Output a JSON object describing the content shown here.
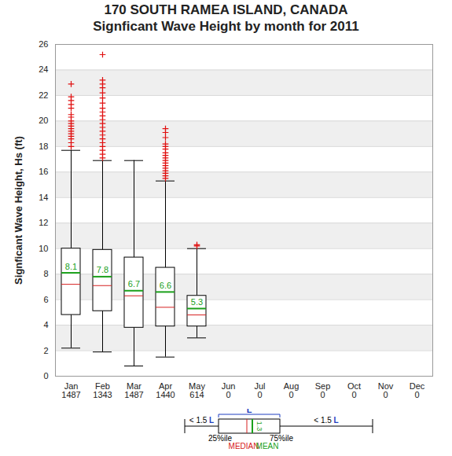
{
  "chart_data": {
    "type": "box",
    "title": "170   SOUTH RAMEA ISLAND, CANADA",
    "subtitle": "Signficant Wave Height by month for 2011",
    "ylabel": "Signficant Wave Height, Hs (ft)",
    "categories": [
      "Jan",
      "Feb",
      "Mar",
      "Apr",
      "May",
      "Jun",
      "Jul",
      "Aug",
      "Sep",
      "Oct",
      "Nov",
      "Dec"
    ],
    "counts": [
      1487,
      1343,
      1487,
      1440,
      614,
      0,
      0,
      0,
      0,
      0,
      0,
      0
    ],
    "boxes": [
      {
        "low": 2.2,
        "q1": 4.8,
        "median": 7.2,
        "mean": 8.1,
        "q3": 10.0,
        "high": 17.7,
        "outliers": [
          18.0,
          18.3,
          18.6,
          18.8,
          19.0,
          19.2,
          19.4,
          19.6,
          19.8,
          20.0,
          20.3,
          20.5,
          21.0,
          21.3,
          21.6,
          21.9,
          22.9
        ]
      },
      {
        "low": 1.9,
        "q1": 5.1,
        "median": 7.1,
        "mean": 7.8,
        "q3": 9.9,
        "high": 16.9,
        "outliers": [
          17.1,
          17.4,
          17.7,
          18.0,
          18.3,
          18.6,
          18.9,
          19.2,
          19.5,
          19.8,
          20.1,
          20.4,
          20.7,
          21.0,
          21.4,
          21.8,
          22.2,
          22.6,
          22.9,
          23.2,
          25.2
        ]
      },
      {
        "low": 0.8,
        "q1": 3.8,
        "median": 6.3,
        "mean": 6.7,
        "q3": 9.3,
        "high": 16.9,
        "outliers": []
      },
      {
        "low": 1.5,
        "q1": 3.9,
        "median": 5.4,
        "mean": 6.6,
        "q3": 8.5,
        "high": 15.3,
        "outliers": [
          15.5,
          15.7,
          15.9,
          16.1,
          16.3,
          16.5,
          16.7,
          16.9,
          17.1,
          17.3,
          17.5,
          17.8,
          18.0,
          18.2,
          18.7,
          19.1,
          19.4
        ]
      },
      {
        "low": 3.0,
        "q1": 3.9,
        "median": 4.8,
        "mean": 5.3,
        "q3": 6.3,
        "high": 10.0,
        "outliers": [
          10.2,
          10.3
        ]
      },
      null,
      null,
      null,
      null,
      null,
      null,
      null
    ],
    "ylim": [
      0,
      26
    ],
    "yticks": [
      0,
      2,
      4,
      6,
      8,
      10,
      12,
      14,
      16,
      18,
      20,
      22,
      24,
      26
    ],
    "grid": true,
    "data_labels": true
  },
  "key": {
    "whisker_prefix": "< 1.5",
    "iqr_label": "L",
    "q1_label": "25%ile",
    "q3_label": "75%ile",
    "median_label": "MEDIAN",
    "mean_label": "MEAN",
    "mean_value": 1.3
  }
}
